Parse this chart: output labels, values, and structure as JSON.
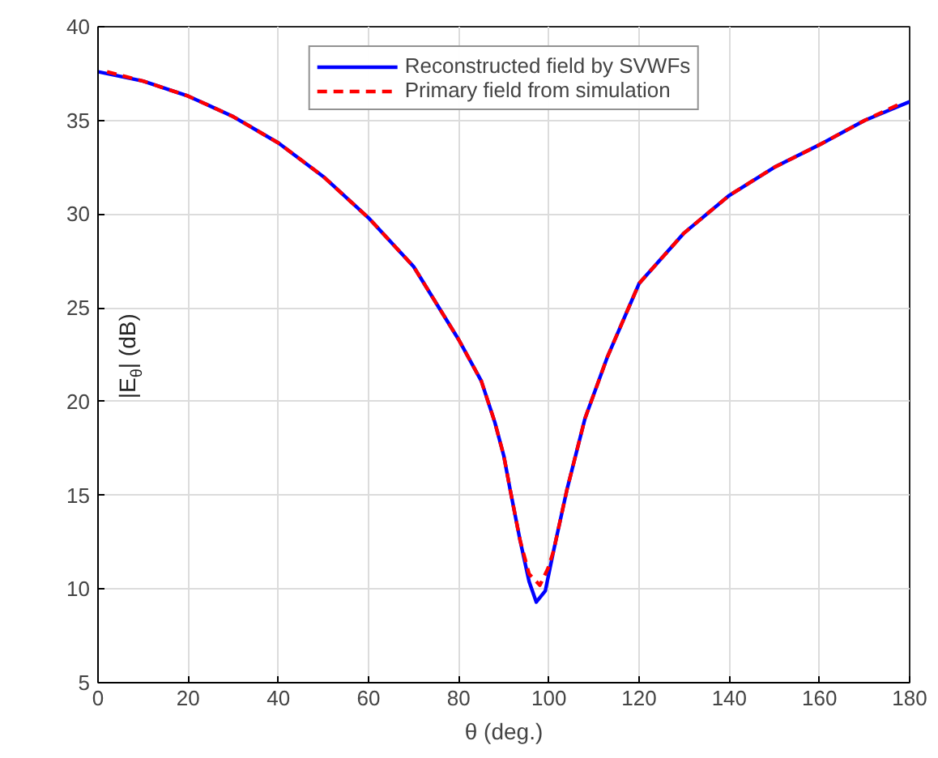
{
  "chart_data": {
    "type": "line",
    "xlabel": "θ (deg.)",
    "ylabel": "|E$_{θ}$| (dB)",
    "xlim": [
      0,
      180
    ],
    "ylim": [
      5,
      40
    ],
    "xticks": [
      0,
      20,
      40,
      60,
      80,
      100,
      120,
      140,
      160,
      180
    ],
    "yticks": [
      5,
      10,
      15,
      20,
      25,
      30,
      35,
      40
    ],
    "grid": true,
    "legend": "top",
    "series": [
      {
        "name": "Reconstructed field by SVWFs",
        "color": "#0000ff",
        "line_style": "solid",
        "x": [
          0,
          10,
          20,
          30,
          40,
          50,
          60,
          70,
          80,
          85,
          88,
          90,
          91.4,
          93.6,
          95.6,
          97.2,
          99.2,
          101,
          104,
          108,
          113,
          120,
          130,
          140,
          150,
          160,
          170,
          180
        ],
        "values": [
          37.6,
          37.1,
          36.3,
          35.2,
          33.8,
          32.0,
          29.8,
          27.2,
          23.3,
          21.1,
          18.9,
          17.1,
          15.3,
          12.6,
          10.4,
          9.3,
          9.9,
          12.0,
          15.3,
          19.1,
          22.4,
          26.3,
          29.0,
          31.0,
          32.5,
          33.7,
          35.0,
          36.0
        ]
      },
      {
        "name": "Primary field from simulation",
        "color": "#ff0000",
        "line_style": "dashed",
        "x": [
          2,
          10,
          20,
          30,
          40,
          50,
          60,
          70,
          80,
          85,
          88,
          90,
          91.4,
          93.6,
          95.6,
          98,
          99.8,
          101,
          104,
          108,
          113,
          120,
          130,
          140,
          150,
          160,
          170,
          178
        ],
        "values": [
          37.6,
          37.1,
          36.3,
          35.2,
          33.8,
          32.0,
          29.8,
          27.2,
          23.3,
          21.1,
          18.9,
          17.1,
          15.3,
          12.6,
          10.8,
          10.2,
          11.1,
          12.0,
          15.3,
          19.1,
          22.4,
          26.3,
          29.0,
          31.0,
          32.5,
          33.7,
          35.0,
          35.9
        ]
      }
    ]
  }
}
